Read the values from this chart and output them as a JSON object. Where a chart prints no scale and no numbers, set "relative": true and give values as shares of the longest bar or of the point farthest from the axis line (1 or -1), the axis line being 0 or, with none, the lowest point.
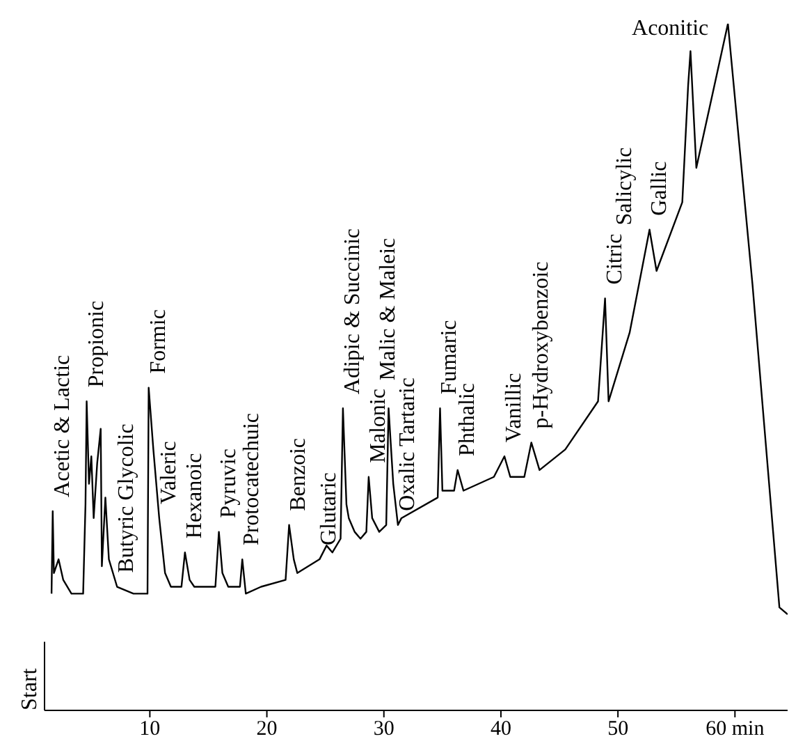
{
  "chart_data": {
    "type": "line",
    "relative": true,
    "xlim": [
      1,
      64.5
    ],
    "xticks": [
      10,
      20,
      30,
      40,
      50,
      {
        "value": 60,
        "label": "60 min"
      }
    ],
    "grid": false,
    "marker": "none",
    "line_style": "solid",
    "x": [
      1.6,
      1.7,
      1.8,
      2.2,
      2.6,
      3.3,
      4.3,
      4.5,
      4.6,
      4.8,
      5.0,
      5.2,
      5.5,
      5.8,
      5.9,
      6.2,
      6.5,
      7.2,
      8.6,
      9.8,
      9.9,
      10.3,
      10.8,
      11.3,
      11.8,
      12.7,
      13.0,
      13.4,
      13.8,
      15.6,
      15.9,
      16.2,
      16.7,
      17.7,
      17.9,
      18.2,
      19.5,
      21.6,
      21.9,
      22.3,
      22.6,
      24.5,
      25.1,
      25.6,
      26.3,
      26.5,
      26.8,
      27.0,
      27.5,
      28.0,
      28.5,
      28.7,
      29.0,
      29.6,
      30.2,
      30.4,
      30.8,
      31.2,
      31.5,
      34.6,
      34.8,
      35.0,
      35.4,
      36.0,
      36.3,
      36.8,
      39.4,
      40.3,
      40.8,
      42.0,
      42.6,
      43.3,
      45.5,
      48.3,
      48.9,
      49.2,
      51.0,
      52.7,
      53.3,
      55.5,
      56.0,
      56.2,
      56.7,
      59.4,
      61.5,
      63.8,
      64.5
    ],
    "series": [
      {
        "color": "#000000",
        "values": [
          0.17,
          0.29,
          0.2,
          0.22,
          0.19,
          0.17,
          0.17,
          0.3,
          0.45,
          0.33,
          0.37,
          0.28,
          0.36,
          0.41,
          0.21,
          0.31,
          0.22,
          0.18,
          0.17,
          0.17,
          0.47,
          0.38,
          0.28,
          0.2,
          0.18,
          0.18,
          0.23,
          0.19,
          0.18,
          0.18,
          0.26,
          0.2,
          0.18,
          0.18,
          0.22,
          0.17,
          0.18,
          0.19,
          0.27,
          0.22,
          0.2,
          0.22,
          0.24,
          0.23,
          0.25,
          0.44,
          0.3,
          0.28,
          0.26,
          0.25,
          0.26,
          0.34,
          0.28,
          0.26,
          0.27,
          0.44,
          0.33,
          0.27,
          0.28,
          0.31,
          0.44,
          0.32,
          0.32,
          0.32,
          0.35,
          0.32,
          0.34,
          0.37,
          0.34,
          0.34,
          0.39,
          0.35,
          0.38,
          0.45,
          0.6,
          0.45,
          0.55,
          0.7,
          0.64,
          0.74,
          0.91,
          0.96,
          0.79,
          1,
          0.62,
          0.15,
          0.14
        ]
      }
    ],
    "ref_lines": [
      {
        "axis": "x",
        "value": 1,
        "label": "Start"
      }
    ],
    "annotations": [
      {
        "text": "Acetic & Lactic",
        "x": 1.7,
        "y": 0.29
      },
      {
        "text": "Propionic",
        "x": 4.6,
        "y": 0.45
      },
      {
        "text": "Butyric Glycolic",
        "x": 7.2,
        "y": 0.18
      },
      {
        "text": "Formic",
        "x": 9.9,
        "y": 0.47
      },
      {
        "text": "Valeric",
        "x": 10.8,
        "y": 0.28
      },
      {
        "text": "Hexanoic",
        "x": 13.0,
        "y": 0.23
      },
      {
        "text": "Pyruvic",
        "x": 15.9,
        "y": 0.26
      },
      {
        "text": "Protocatechuic",
        "x": 17.9,
        "y": 0.22
      },
      {
        "text": "Benzoic",
        "x": 21.9,
        "y": 0.27
      },
      {
        "text": "Glutaric",
        "x": 24.5,
        "y": 0.22
      },
      {
        "text": "Adipic & Succinic",
        "x": 26.5,
        "y": 0.44
      },
      {
        "text": "Malonic",
        "x": 28.7,
        "y": 0.34
      },
      "Malic & Maleic",
      {
        "text": "Oxalic Tartaric",
        "x": 31.2,
        "y": 0.27
      },
      {
        "text": "Fumaric",
        "x": 34.8,
        "y": 0.44
      },
      {
        "text": "Phthalic",
        "x": 36.3,
        "y": 0.35
      },
      {
        "text": "Vanillic",
        "x": 40.3,
        "y": 0.37
      },
      {
        "text": "p-Hydroxybenzoic",
        "x": 42.6,
        "y": 0.39
      },
      {
        "text": "Citric",
        "x": 48.9,
        "y": 0.6
      },
      "Salicylic",
      {
        "text": "Gallic",
        "x": 52.7,
        "y": 0.7
      },
      {
        "text": "Aconitic",
        "x": 59.4,
        "y": 1
      }
    ]
  }
}
